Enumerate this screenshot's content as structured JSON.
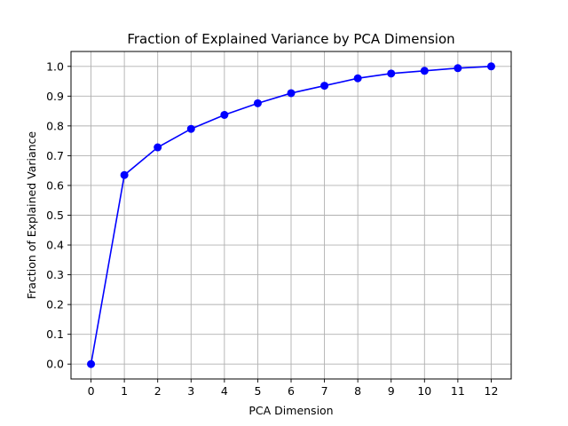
{
  "chart_data": {
    "type": "line",
    "title": "Fraction of Explained Variance by PCA Dimension",
    "xlabel": "PCA Dimension",
    "ylabel": "Fraction of Explained Variance",
    "xlim": [
      -0.6,
      12.6
    ],
    "ylim": [
      -0.05,
      1.05
    ],
    "x_ticks": [
      0,
      1,
      2,
      3,
      4,
      5,
      6,
      7,
      8,
      9,
      10,
      11,
      12
    ],
    "y_ticks": [
      0.0,
      0.1,
      0.2,
      0.3,
      0.4,
      0.5,
      0.6,
      0.7,
      0.8,
      0.9,
      1.0
    ],
    "x_tick_labels": [
      "0",
      "1",
      "2",
      "3",
      "4",
      "5",
      "6",
      "7",
      "8",
      "9",
      "10",
      "11",
      "12"
    ],
    "y_tick_labels": [
      "0.0",
      "0.1",
      "0.2",
      "0.3",
      "0.4",
      "0.5",
      "0.6",
      "0.7",
      "0.8",
      "0.9",
      "1.0"
    ],
    "grid": true,
    "series": [
      {
        "color": "#0000ff",
        "marker": "circle",
        "x": [
          0,
          1,
          2,
          3,
          4,
          5,
          6,
          7,
          8,
          9,
          10,
          11,
          12
        ],
        "y": [
          0.0,
          0.635,
          0.728,
          0.79,
          0.837,
          0.876,
          0.91,
          0.935,
          0.96,
          0.976,
          0.985,
          0.994,
          1.0
        ]
      }
    ]
  }
}
